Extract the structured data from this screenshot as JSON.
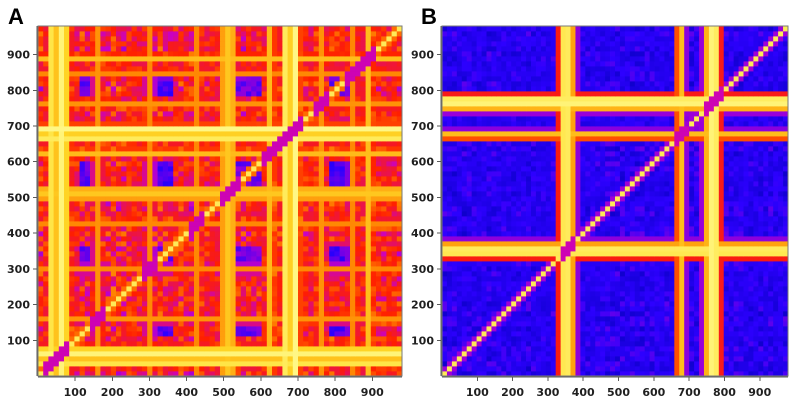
{
  "chart_data": [
    {
      "panel_label": "A",
      "type": "heatmap",
      "title": "",
      "xlabel": "",
      "ylabel": "",
      "xlim": [
        0,
        980
      ],
      "ylim": [
        0,
        980
      ],
      "x_ticks": [
        100,
        200,
        300,
        400,
        500,
        600,
        700,
        800,
        900
      ],
      "x_tick_labels": [
        "100",
        "200",
        "300",
        "400",
        "500",
        "600",
        "700",
        "800",
        "900"
      ],
      "y_ticks": [
        100,
        200,
        300,
        400,
        500,
        600,
        700,
        800,
        900
      ],
      "y_tick_labels": [
        "100",
        "200",
        "300",
        "400",
        "500",
        "600",
        "700",
        "800",
        "900"
      ],
      "colormap": [
        "#0000b4",
        "#2d00ff",
        "#c800c8",
        "#ff1e00",
        "#ff8200",
        "#ffdc28",
        "#ffffa0"
      ],
      "value_range": [
        0,
        1
      ],
      "symmetric": true,
      "diagonal_value": 1.0,
      "grid_size": 70,
      "background_level": 0.48,
      "background_variation": 0.22,
      "band_positions": [
        40,
        65,
        160,
        300,
        430,
        505,
        520,
        625,
        670,
        690,
        760,
        850,
        890
      ],
      "band_levels": [
        0.92,
        0.95,
        0.7,
        0.68,
        0.7,
        0.9,
        0.85,
        0.78,
        0.95,
        0.98,
        0.72,
        0.7,
        0.78
      ],
      "band_widths": [
        16,
        22,
        12,
        12,
        12,
        12,
        10,
        14,
        16,
        16,
        12,
        12,
        14
      ],
      "dark_block_positions": [
        140,
        320,
        560,
        820
      ],
      "dark_block_widths": [
        60,
        80,
        70,
        70
      ],
      "dark_block_levels": [
        0.22,
        0.2,
        0.24,
        0.2
      ]
    },
    {
      "panel_label": "B",
      "type": "heatmap",
      "title": "",
      "xlabel": "",
      "ylabel": "",
      "xlim": [
        0,
        980
      ],
      "ylim": [
        0,
        980
      ],
      "x_ticks": [
        100,
        200,
        300,
        400,
        500,
        600,
        700,
        800,
        900
      ],
      "x_tick_labels": [
        "100",
        "200",
        "300",
        "400",
        "500",
        "600",
        "700",
        "800",
        "900"
      ],
      "y_ticks": [
        100,
        200,
        300,
        400,
        500,
        600,
        700,
        800,
        900
      ],
      "y_tick_labels": [
        "100",
        "200",
        "300",
        "400",
        "500",
        "600",
        "700",
        "800",
        "900"
      ],
      "colormap": [
        "#0000b4",
        "#2d00ff",
        "#c800c8",
        "#ff1e00",
        "#ff8200",
        "#ffdc28",
        "#ffffa0"
      ],
      "value_range": [
        0,
        1
      ],
      "symmetric": true,
      "diagonal_value": 1.0,
      "grid_size": 70,
      "background_level": 0.14,
      "background_variation": 0.1,
      "band_positions": [
        350,
        360,
        675,
        760,
        775
      ],
      "band_levels": [
        0.96,
        0.92,
        0.82,
        0.96,
        0.92
      ],
      "band_widths": [
        18,
        16,
        12,
        16,
        14
      ],
      "dark_block_positions": [],
      "dark_block_widths": [],
      "dark_block_levels": []
    }
  ]
}
